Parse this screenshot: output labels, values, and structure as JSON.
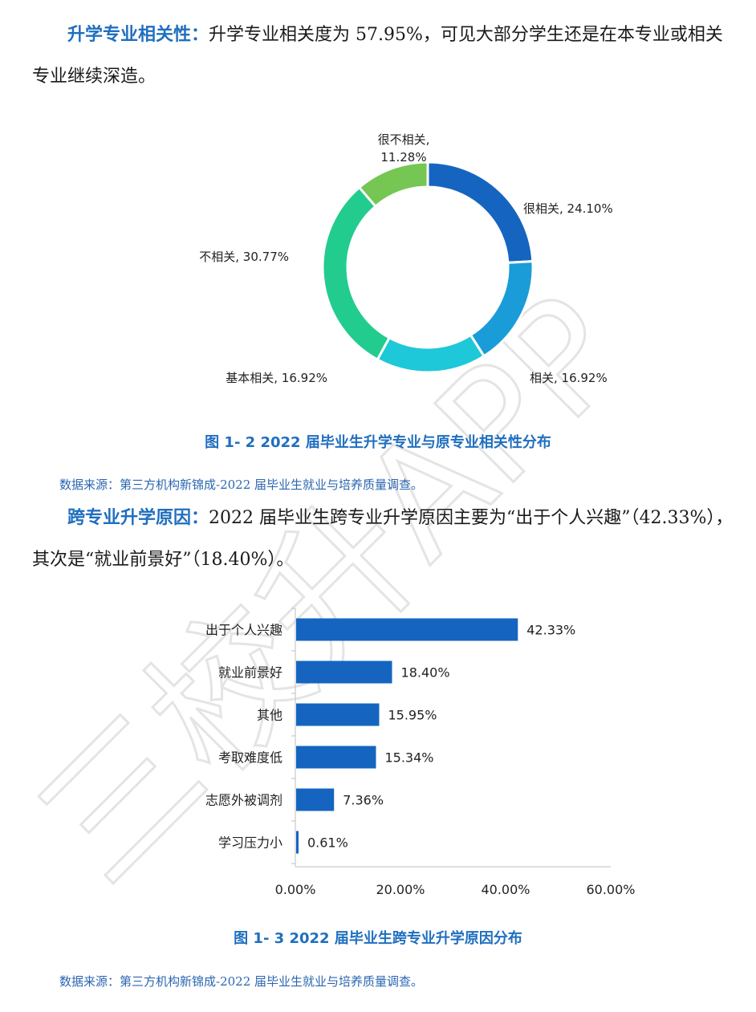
{
  "para1": {
    "lead": "升学专业相关性：",
    "text": "升学专业相关度为 57.95%，可见大部分学生还是在本专业或相关专业继续深造。"
  },
  "figure1": {
    "caption": "图 1- 2  2022 届毕业生升学专业与原专业相关性分布",
    "source": "数据来源：第三方机构新锦成-2022 届毕业生就业与培养质量调查。"
  },
  "para2": {
    "lead": "跨专业升学原因：",
    "text": "2022 届毕业生跨专业升学原因主要为“出于个人兴趣”（42.33%），其次是“就业前景好”（18.40%）。"
  },
  "figure2": {
    "caption": "图 1- 3  2022 届毕业生跨专业升学原因分布",
    "source": "数据来源：第三方机构新锦成-2022 届毕业生就业与培养质量调查。"
  },
  "watermark": "三校升APP",
  "chart_data": [
    {
      "type": "pie",
      "variant": "donut",
      "title": "",
      "slices": [
        {
          "label": "很相关",
          "value": 24.1,
          "display": "24.10%",
          "color": "#1565c0"
        },
        {
          "label": "相关",
          "value": 16.92,
          "display": "16.92%",
          "color": "#1a9cd8"
        },
        {
          "label": "基本相关",
          "value": 16.92,
          "display": "16.92%",
          "color": "#1ec8d8"
        },
        {
          "label": "不相关",
          "value": 30.77,
          "display": "30.77%",
          "color": "#22cc8e"
        },
        {
          "label": "很不相关",
          "value": 11.28,
          "display": "11.28%",
          "color": "#76c653"
        }
      ]
    },
    {
      "type": "bar",
      "orientation": "horizontal",
      "title": "",
      "categories": [
        "出于个人兴趣",
        "就业前景好",
        "其他",
        "考取难度低",
        "志愿外被调剂",
        "学习压力小"
      ],
      "values": [
        42.33,
        18.4,
        15.95,
        15.34,
        7.36,
        0.61
      ],
      "value_labels": [
        "42.33%",
        "18.40%",
        "15.95%",
        "15.34%",
        "7.36%",
        "0.61%"
      ],
      "xlim": [
        0,
        60
      ],
      "xticks": [
        "0.00%",
        "20.00%",
        "40.00%",
        "60.00%"
      ],
      "xtick_values": [
        0,
        20,
        40,
        60
      ],
      "color": "#1565c0",
      "grid": false
    }
  ]
}
